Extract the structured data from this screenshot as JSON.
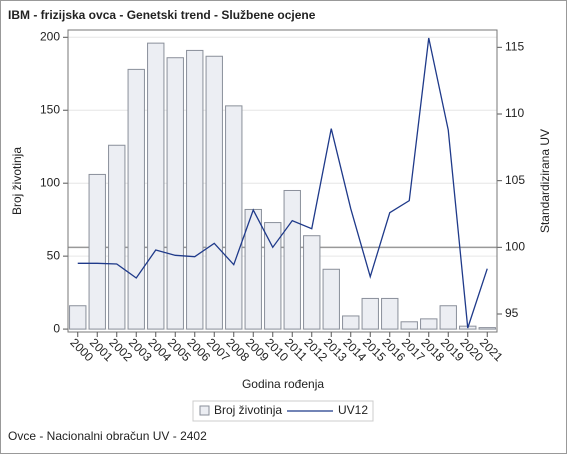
{
  "chart_data": {
    "type": "bar_line",
    "title": "IBM - frizijska ovca - Genetski trend - Službene ocjene",
    "x_label": "Godina rođenja",
    "y_label": "Broj životinja",
    "y2_label": "Standardizirana UV",
    "footnote": "Ovce - Nacionalni obračun UV - 2402",
    "categories": [
      "2000",
      "2001",
      "2002",
      "2003",
      "2004",
      "2005",
      "2006",
      "2007",
      "2008",
      "2009",
      "2010",
      "2011",
      "2012",
      "2013",
      "2014",
      "2015",
      "2016",
      "2017",
      "2018",
      "2019",
      "2020",
      "2021"
    ],
    "series": [
      {
        "name": "Broj životinja",
        "type": "bar",
        "color": "#eceef3",
        "stroke": "#8a8f9a",
        "values": [
          16,
          106,
          126,
          178,
          196,
          186,
          191,
          187,
          153,
          82,
          73,
          95,
          64,
          41,
          9,
          21,
          21,
          5,
          7,
          16,
          2,
          1
        ]
      },
      {
        "name": "UV12",
        "type": "line",
        "axis": "y2",
        "color": "#1f3a8a",
        "values": [
          98.8,
          98.8,
          98.75,
          97.7,
          99.8,
          99.4,
          99.3,
          100.3,
          98.7,
          102.8,
          100.0,
          102.0,
          101.4,
          108.9,
          102.9,
          97.8,
          102.6,
          103.5,
          115.7,
          108.8,
          93.95,
          98.4
        ]
      }
    ],
    "ylim": [
      -2,
      205
    ],
    "yticks": [
      0,
      50,
      100,
      150,
      200
    ],
    "y2lim": [
      93.65,
      116.3
    ],
    "y2ticks": [
      95,
      100,
      105,
      110,
      115
    ],
    "y2_refline": 100,
    "grid": true
  }
}
